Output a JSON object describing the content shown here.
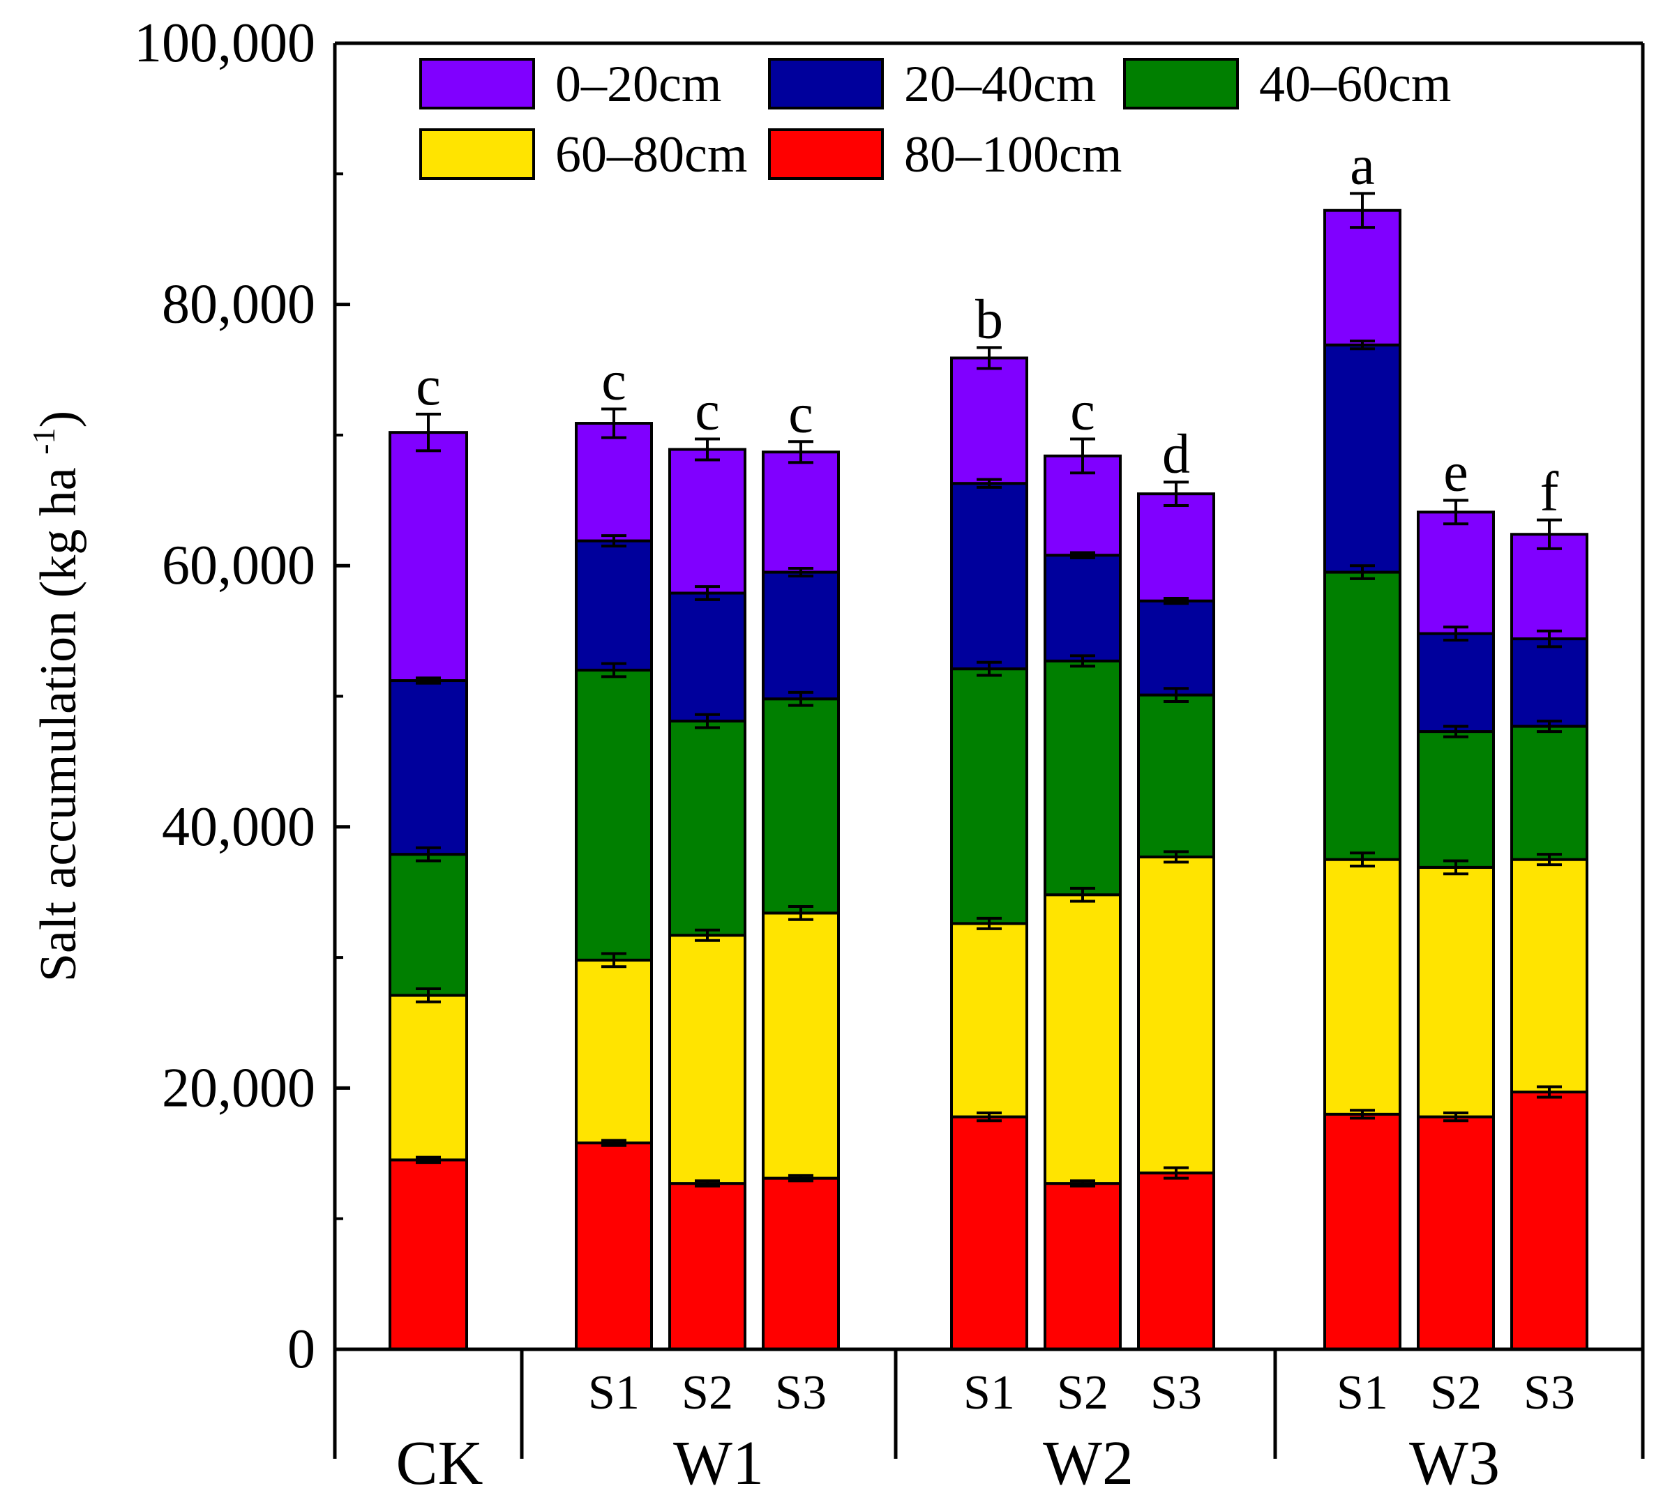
{
  "chart_data": {
    "type": "bar",
    "stacked": true,
    "ylabel": "Salt accumulation (kg ha",
    "ylabel_superscript": "-1",
    "ylabel_close": ")",
    "ylim": [
      0,
      100000
    ],
    "yticks": [
      0,
      20000,
      40000,
      60000,
      80000,
      100000
    ],
    "ytick_labels": [
      "0",
      "20,000",
      "40,000",
      "60,000",
      "80,000",
      "100,000"
    ],
    "grid": false,
    "legend_position": "top",
    "groups": [
      {
        "label": "CK",
        "bars": [
          "CK"
        ]
      },
      {
        "label": "W1",
        "bars": [
          "W1S1",
          "W1S2",
          "W1S3"
        ]
      },
      {
        "label": "W2",
        "bars": [
          "W2S1",
          "W2S2",
          "W2S3"
        ]
      },
      {
        "label": "W3",
        "bars": [
          "W3S1",
          "W3S2",
          "W3S3"
        ]
      }
    ],
    "categories": [
      "CK",
      "W1S1",
      "W1S2",
      "W1S3",
      "W2S1",
      "W2S2",
      "W2S3",
      "W3S1",
      "W3S2",
      "W3S3"
    ],
    "sub_labels": [
      "",
      "S1",
      "S2",
      "S3",
      "S1",
      "S2",
      "S3",
      "S1",
      "S2",
      "S3"
    ],
    "series": [
      {
        "name": "80–100cm",
        "color": "#ff0000",
        "values": [
          14500,
          15800,
          12700,
          13100,
          17800,
          12700,
          13500,
          18000,
          17800,
          19700
        ],
        "errors": [
          200,
          200,
          200,
          200,
          300,
          200,
          400,
          300,
          300,
          400
        ]
      },
      {
        "name": "60–80cm",
        "color": "#ffe400",
        "values": [
          12600,
          14000,
          19000,
          20300,
          14800,
          22100,
          24200,
          19500,
          19100,
          17800
        ],
        "errors": [
          500,
          500,
          400,
          500,
          400,
          500,
          400,
          500,
          500,
          400
        ]
      },
      {
        "name": "40–60cm",
        "color": "#007f00",
        "values": [
          10800,
          22200,
          16400,
          16400,
          19500,
          17900,
          12400,
          22000,
          10400,
          10200
        ],
        "errors": [
          500,
          500,
          500,
          500,
          500,
          400,
          500,
          500,
          400,
          400
        ]
      },
      {
        "name": "20–40cm",
        "color": "#00009c",
        "values": [
          13300,
          9900,
          9800,
          9700,
          14200,
          8100,
          7200,
          17400,
          7500,
          6700
        ],
        "errors": [
          200,
          400,
          500,
          300,
          300,
          200,
          200,
          300,
          500,
          600
        ]
      },
      {
        "name": "0–20cm",
        "color": "#8000ff",
        "values": [
          19000,
          9000,
          11000,
          9200,
          9600,
          7600,
          8200,
          10300,
          9300,
          8000
        ],
        "errors": [
          1400,
          1100,
          800,
          800,
          800,
          1300,
          900,
          1300,
          900,
          1100
        ]
      }
    ],
    "totals": [
      70200,
      70900,
      68900,
      68700,
      75900,
      68400,
      65500,
      87200,
      64100,
      62400
    ],
    "significance_letters": [
      "c",
      "c",
      "c",
      "c",
      "b",
      "c",
      "d",
      "a",
      "e",
      "f"
    ],
    "legend": [
      "0–20cm",
      "20–40cm",
      "40–60cm",
      "60–80cm",
      "80–100cm"
    ]
  }
}
